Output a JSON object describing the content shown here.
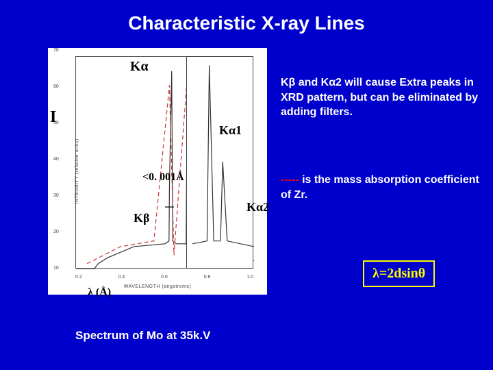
{
  "title": "Characteristic X-ray Lines",
  "caption": "Spectrum of Mo at 35k.V",
  "equation": "λ=2dsinθ",
  "text_block1": "Kβ and Kα2 will cause Extra peaks in XRD pattern, but can be eliminated by adding filters.",
  "text_block2_pre": "-----",
  "text_block2": " is the mass absorption coefficient of Zr.",
  "overlays": {
    "Ka": "Kα",
    "Ka1": "Kα1",
    "Ka2": "Kα2",
    "Kb": "Kβ",
    "I": "I",
    "gap": "<0. 001Å",
    "lambda": "λ (Å)"
  },
  "chart": {
    "type": "line-spectrum",
    "background_color": "#ffffff",
    "axis_color": "#555555",
    "y_label": "INTENSITY (relative units)",
    "x_label": "WAVELENGTH (angstroms)",
    "y_ticks": [
      "10",
      "20",
      "30",
      "40",
      "50",
      "60",
      "70"
    ],
    "x_ticks": [
      "0.2",
      "0.4",
      "0.6",
      "0.8",
      "1.0"
    ],
    "xlim": [
      0.2,
      1.0
    ],
    "ylim": [
      0,
      75
    ],
    "main_curve_color": "#333333",
    "filter_curve_color": "#cc3333",
    "filter_curve_dashed": true,
    "main_curve": [
      [
        0.2,
        0
      ],
      [
        0.28,
        0
      ],
      [
        0.3,
        2
      ],
      [
        0.34,
        4
      ],
      [
        0.4,
        6
      ],
      [
        0.46,
        8
      ],
      [
        0.6,
        9
      ],
      [
        0.618,
        10
      ],
      [
        0.62,
        30
      ],
      [
        0.63,
        70
      ],
      [
        0.635,
        10
      ],
      [
        0.65,
        9
      ],
      [
        0.695,
        9
      ],
      [
        0.7,
        72
      ],
      [
        0.715,
        72
      ],
      [
        0.72,
        9
      ],
      [
        0.8,
        7
      ],
      [
        0.9,
        5
      ],
      [
        1.0,
        3
      ]
    ],
    "inset": {
      "xlim": [
        0.68,
        0.74
      ],
      "curve": [
        [
          0.685,
          9
        ],
        [
          0.698,
          10
        ],
        [
          0.7,
          72
        ],
        [
          0.704,
          10
        ],
        [
          0.71,
          10
        ],
        [
          0.712,
          38
        ],
        [
          0.716,
          10
        ],
        [
          0.74,
          8
        ]
      ],
      "ka1_peak_x": 0.7,
      "ka2_peak_x": 0.712
    }
  },
  "style": {
    "page_bg": "#0000cc",
    "title_color": "#ffffff",
    "title_fontsize": 28,
    "text_color": "#ffffff",
    "text_fontsize": 16,
    "eq_border_color": "#ffff00",
    "eq_text_color": "#ffff00",
    "eq_fontsize": 20,
    "dash_color": "#ff0000",
    "overlay_color": "#000000"
  }
}
